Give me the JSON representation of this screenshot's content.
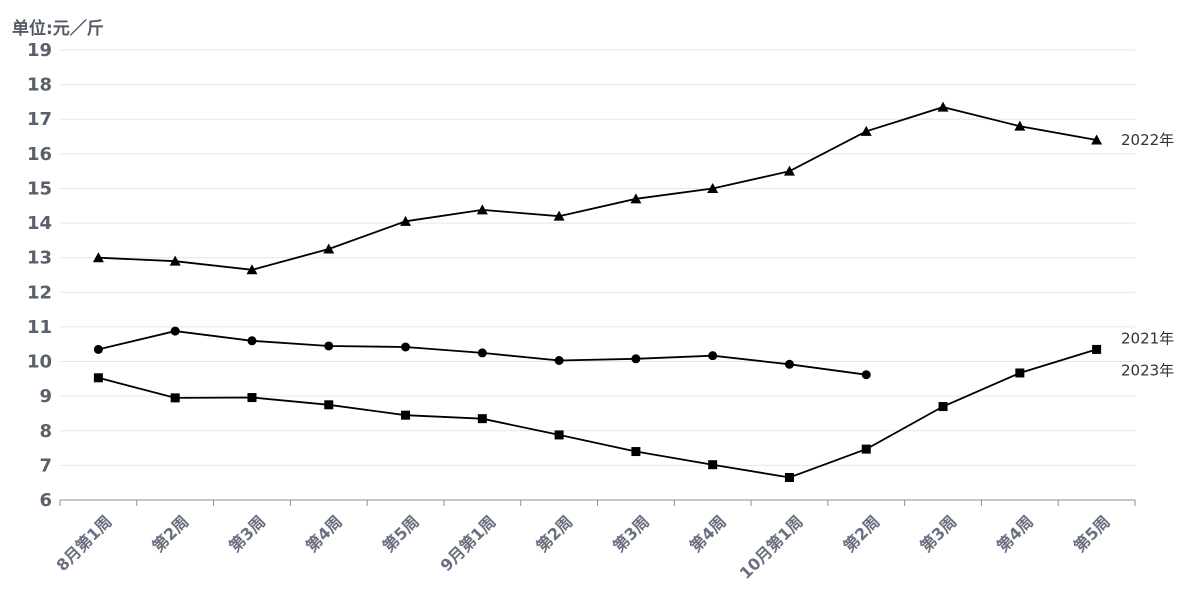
{
  "chart_data": {
    "type": "line",
    "unit_label": "单位:元／斤",
    "categories": [
      "8月第1周",
      "第2周",
      "第3周",
      "第4周",
      "第5周",
      "9月第1周",
      "第2周",
      "第3周",
      "第4周",
      "10月第1周",
      "第2周",
      "第3周",
      "第4周",
      "第5周"
    ],
    "ylim": [
      6,
      19
    ],
    "yticks": [
      6,
      7,
      8,
      9,
      10,
      11,
      12,
      13,
      14,
      15,
      16,
      17,
      18,
      19
    ],
    "grid": true,
    "series": [
      {
        "name": "2022年",
        "marker": "triangle",
        "color": "#000000",
        "values": [
          13.0,
          12.9,
          12.65,
          13.25,
          14.05,
          14.38,
          14.2,
          14.7,
          15.0,
          15.5,
          16.65,
          17.35,
          16.8,
          16.4
        ]
      },
      {
        "name": "2021年",
        "marker": "circle",
        "color": "#000000",
        "values": [
          10.35,
          10.88,
          10.6,
          10.45,
          10.42,
          10.25,
          10.03,
          10.08,
          10.17,
          9.92,
          9.62,
          null,
          null,
          null
        ]
      },
      {
        "name": "2023年",
        "marker": "square",
        "color": "#000000",
        "values": [
          9.53,
          8.95,
          8.96,
          8.75,
          8.45,
          8.35,
          7.88,
          7.4,
          7.02,
          6.65,
          7.47,
          8.7,
          9.67,
          10.35
        ]
      }
    ]
  }
}
